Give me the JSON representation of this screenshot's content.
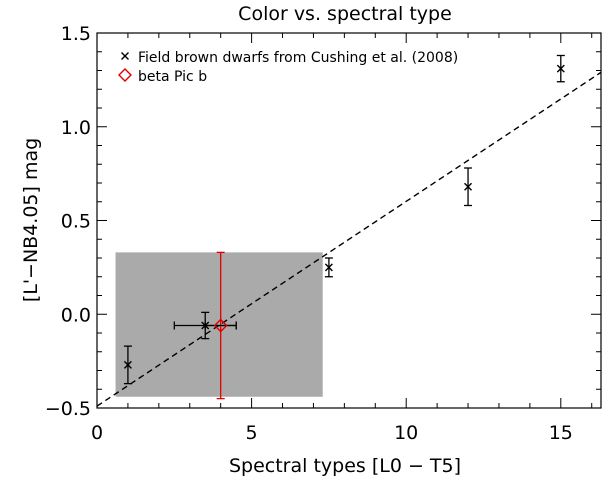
{
  "chart_data": {
    "type": "scatter",
    "title": "Color vs. spectral type",
    "xlabel": "Spectral types [L0 − T5]",
    "ylabel": "[L'−NB4.05] mag",
    "xlim": [
      0,
      16.3
    ],
    "ylim": [
      -0.5,
      1.5
    ],
    "xticks": [
      {
        "value": 0,
        "label": "0"
      },
      {
        "value": 5,
        "label": "5"
      },
      {
        "value": 10,
        "label": "10"
      },
      {
        "value": 15,
        "label": "15"
      }
    ],
    "yticks": [
      {
        "value": -0.5,
        "label": "−0.5"
      },
      {
        "value": 0.0,
        "label": "0.0"
      },
      {
        "value": 0.5,
        "label": "0.5"
      },
      {
        "value": 1.0,
        "label": "1.0"
      },
      {
        "value": 1.5,
        "label": "1.5"
      }
    ],
    "grid": false,
    "legend_position": "top-left",
    "series": [
      {
        "name": "Field brown dwarfs from Cushing et al. (2008)",
        "marker": "x",
        "color": "#000000",
        "points": [
          {
            "x": 1.0,
            "y": -0.27,
            "yerr": 0.1
          },
          {
            "x": 3.5,
            "y": -0.06,
            "yerr": 0.07,
            "xerr": 1.0
          },
          {
            "x": 7.5,
            "y": 0.25,
            "yerr": 0.05
          },
          {
            "x": 12.0,
            "y": 0.68,
            "yerr": 0.1
          },
          {
            "x": 15.0,
            "y": 1.31,
            "yerr": 0.07
          }
        ]
      },
      {
        "name": "beta Pic b",
        "marker": "diamond",
        "color": "#e00000",
        "points": [
          {
            "x": 4.0,
            "y": -0.06,
            "yerr": 0.39,
            "xerr": 0.5
          }
        ]
      }
    ],
    "fit_line": {
      "style": "dashed",
      "color": "#000000",
      "x": [
        0,
        16.3
      ],
      "y": [
        -0.49,
        1.29
      ]
    },
    "shaded_region": {
      "color": "#aaaaaa",
      "x": [
        0.6,
        7.3
      ],
      "y": [
        -0.44,
        0.33
      ]
    }
  }
}
